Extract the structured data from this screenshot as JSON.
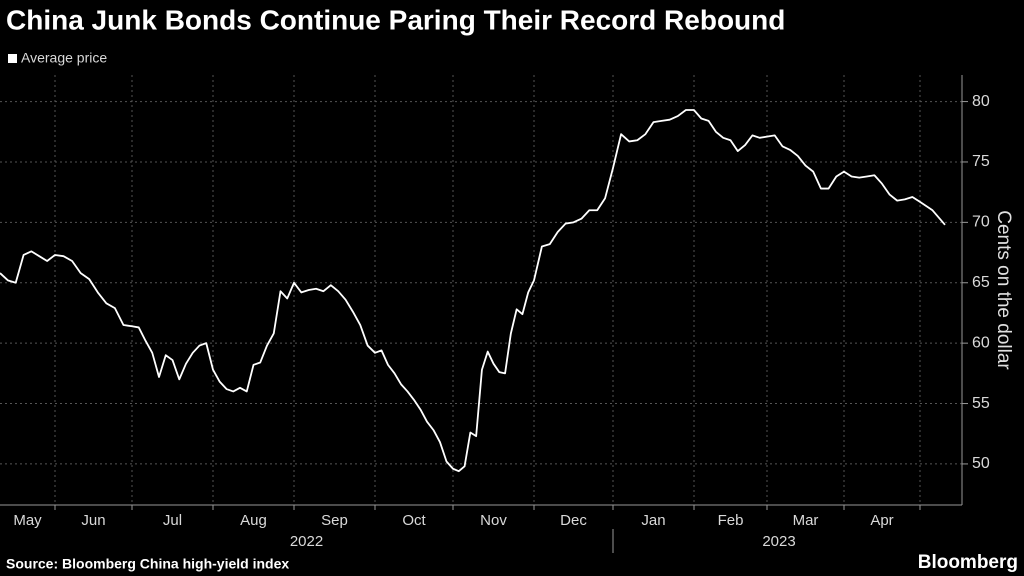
{
  "chart_data": {
    "type": "line",
    "title": "China Junk Bonds Continue Paring Their Record Rebound",
    "y_label": "Cents on the dollar",
    "source": "Source: Bloomberg China high-yield index",
    "brand": "Bloomberg",
    "categories": [
      "May",
      "Jun",
      "Jul",
      "Aug",
      "Sep",
      "Oct",
      "Nov",
      "Dec",
      "Jan",
      "Feb",
      "Mar",
      "Apr",
      null
    ],
    "year_labels": [
      "2022",
      "2023"
    ],
    "series": [
      {
        "name": "Average price",
        "color": "#ffffff",
        "values": [
          [
            65.8,
            65.2,
            65.0,
            67.3,
            67.6,
            67.2,
            66.8
          ],
          [
            67.3,
            67.2,
            66.8,
            65.8,
            65.3,
            64.2,
            63.3,
            62.9,
            61.5
          ],
          [
            61.4,
            61.3,
            60.2,
            59.2,
            57.2,
            59.0,
            58.6,
            57.0,
            58.3,
            59.2,
            59.8,
            60.0
          ],
          [
            57.8,
            56.8,
            56.2,
            56.0,
            56.3,
            56.0,
            58.2,
            58.4,
            59.8,
            60.8,
            64.3,
            63.7
          ],
          [
            65.0,
            64.2,
            64.4,
            64.5,
            64.3,
            64.8,
            64.3,
            63.6,
            62.6,
            61.5,
            59.8
          ],
          [
            59.2,
            59.4,
            58.2,
            57.5,
            56.6,
            56.0,
            55.3,
            54.5,
            53.5,
            52.8,
            51.8,
            50.2
          ],
          [
            49.6,
            49.4,
            49.8,
            52.6,
            52.3,
            57.8,
            59.3,
            58.3,
            57.6,
            57.5,
            60.8,
            62.8,
            62.4,
            64.2
          ],
          [
            65.2,
            68.0,
            68.2,
            69.2,
            69.9,
            70.0,
            70.3,
            71.0,
            71.0,
            72.0
          ],
          [
            74.5,
            77.3,
            76.7,
            76.8,
            77.3,
            78.3,
            78.4,
            78.5,
            78.8,
            79.3
          ],
          [
            79.3,
            78.6,
            78.4,
            77.5,
            77.0,
            76.8,
            75.9,
            76.4,
            77.2,
            77.0
          ],
          [
            77.1,
            77.2,
            76.3,
            76.0,
            75.5,
            74.7,
            74.2,
            72.8,
            72.8,
            73.8
          ],
          [
            74.2,
            73.8,
            73.7,
            73.8,
            73.9,
            73.2,
            72.3,
            71.8,
            71.9,
            72.1
          ],
          [
            71.7,
            71.0,
            69.8
          ]
        ]
      }
    ],
    "ylim": [
      46.6,
      82.2
    ],
    "yticks": [
      50,
      55,
      60,
      65,
      70,
      75,
      80
    ],
    "grid": true
  }
}
